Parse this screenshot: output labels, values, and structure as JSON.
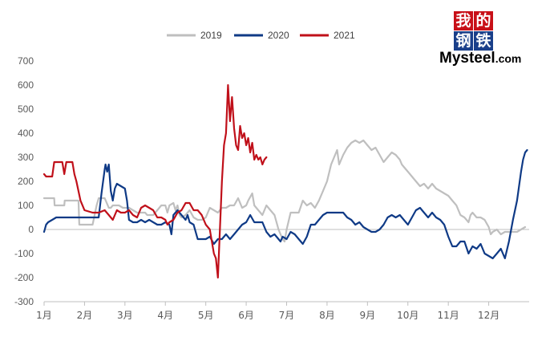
{
  "logo": {
    "chars": [
      "我",
      "的",
      "钢",
      "铁"
    ],
    "brand_main": "Mysteel",
    "brand_suffix": ".com",
    "red": "#c81018",
    "blue": "#1a3f8a"
  },
  "chart_data": {
    "type": "line",
    "title": "",
    "xlabel": "",
    "ylabel": "",
    "ylim": [
      -300,
      700
    ],
    "yticks": [
      -300,
      -200,
      -100,
      0,
      100,
      200,
      300,
      400,
      500,
      600,
      700
    ],
    "xlim": [
      1,
      13
    ],
    "xticks": [
      {
        "x": 1,
        "label": "1月"
      },
      {
        "x": 2,
        "label": "2月"
      },
      {
        "x": 3,
        "label": "3月"
      },
      {
        "x": 4,
        "label": "4月"
      },
      {
        "x": 5,
        "label": "5月"
      },
      {
        "x": 6,
        "label": "6月"
      },
      {
        "x": 7,
        "label": "7月"
      },
      {
        "x": 8,
        "label": "8月"
      },
      {
        "x": 9,
        "label": "9月"
      },
      {
        "x": 10,
        "label": "10月"
      },
      {
        "x": 11,
        "label": "11月"
      },
      {
        "x": 12,
        "label": "12月"
      }
    ],
    "legend": "top-center",
    "grid": false,
    "series": [
      {
        "name": "2019",
        "color": "#bfbfbf",
        "x": [
          1.0,
          1.25,
          1.26,
          1.5,
          1.51,
          1.85,
          1.87,
          2.2,
          2.3,
          2.35,
          2.5,
          2.6,
          2.65,
          2.7,
          2.85,
          2.95,
          3.1,
          3.2,
          3.3,
          3.5,
          3.55,
          3.7,
          3.8,
          3.9,
          4.0,
          4.05,
          4.1,
          4.2,
          4.25,
          4.3,
          4.35,
          4.4,
          4.5,
          4.6,
          4.7,
          4.8,
          4.9,
          5.0,
          5.1,
          5.2,
          5.3,
          5.4,
          5.5,
          5.6,
          5.7,
          5.8,
          5.9,
          6.0,
          6.05,
          6.15,
          6.2,
          6.3,
          6.4,
          6.5,
          6.6,
          6.7,
          6.8,
          6.85,
          6.9,
          6.95,
          7.0,
          7.1,
          7.2,
          7.3,
          7.4,
          7.5,
          7.6,
          7.7,
          7.8,
          7.9,
          8.0,
          8.1,
          8.2,
          8.25,
          8.3,
          8.4,
          8.5,
          8.6,
          8.7,
          8.8,
          8.9,
          9.0,
          9.1,
          9.2,
          9.3,
          9.4,
          9.5,
          9.6,
          9.7,
          9.8,
          9.85,
          9.9,
          10.0,
          10.1,
          10.2,
          10.3,
          10.4,
          10.5,
          10.6,
          10.7,
          10.8,
          10.9,
          11.0,
          11.1,
          11.2,
          11.3,
          11.4,
          11.45,
          11.5,
          11.55,
          11.6,
          11.7,
          11.8,
          11.9,
          12.0,
          12.05,
          12.1,
          12.2,
          12.3,
          12.4,
          12.5,
          12.6,
          12.7,
          12.8,
          12.9
        ],
        "values": [
          130,
          130,
          100,
          100,
          120,
          120,
          20,
          20,
          100,
          130,
          130,
          90,
          90,
          100,
          100,
          90,
          90,
          80,
          70,
          70,
          60,
          60,
          80,
          100,
          100,
          70,
          100,
          110,
          80,
          100,
          60,
          50,
          60,
          80,
          50,
          40,
          40,
          50,
          90,
          80,
          70,
          90,
          90,
          100,
          100,
          130,
          90,
          100,
          120,
          150,
          100,
          80,
          60,
          100,
          80,
          60,
          0,
          -20,
          -40,
          -50,
          0,
          70,
          70,
          70,
          120,
          100,
          110,
          90,
          120,
          160,
          200,
          270,
          310,
          330,
          270,
          310,
          340,
          360,
          370,
          360,
          370,
          350,
          330,
          340,
          310,
          280,
          300,
          320,
          310,
          290,
          270,
          260,
          240,
          220,
          200,
          180,
          190,
          170,
          190,
          170,
          160,
          150,
          140,
          120,
          100,
          60,
          50,
          40,
          30,
          60,
          70,
          50,
          50,
          40,
          10,
          -20,
          -10,
          0,
          -20,
          -10,
          -10,
          -10,
          -10,
          0,
          10
        ]
      },
      {
        "name": "2020",
        "color": "#0f3a86",
        "x": [
          1.0,
          1.05,
          1.1,
          1.2,
          1.3,
          1.4,
          1.6,
          1.8,
          2.0,
          2.2,
          2.35,
          2.42,
          2.5,
          2.52,
          2.56,
          2.6,
          2.65,
          2.7,
          2.75,
          2.8,
          2.9,
          3.0,
          3.05,
          3.1,
          3.2,
          3.3,
          3.4,
          3.5,
          3.6,
          3.7,
          3.8,
          3.9,
          4.0,
          4.1,
          4.15,
          4.2,
          4.3,
          4.4,
          4.5,
          4.55,
          4.6,
          4.7,
          4.8,
          4.9,
          5.0,
          5.1,
          5.2,
          5.3,
          5.4,
          5.5,
          5.6,
          5.7,
          5.8,
          5.9,
          6.0,
          6.1,
          6.2,
          6.3,
          6.4,
          6.5,
          6.6,
          6.7,
          6.8,
          6.85,
          6.9,
          7.0,
          7.1,
          7.2,
          7.3,
          7.4,
          7.5,
          7.6,
          7.7,
          7.8,
          7.9,
          8.0,
          8.1,
          8.2,
          8.3,
          8.4,
          8.5,
          8.6,
          8.7,
          8.8,
          8.9,
          9.0,
          9.1,
          9.2,
          9.3,
          9.4,
          9.5,
          9.6,
          9.7,
          9.8,
          9.9,
          10.0,
          10.1,
          10.2,
          10.3,
          10.4,
          10.5,
          10.6,
          10.7,
          10.8,
          10.9,
          11.0,
          11.1,
          11.2,
          11.3,
          11.4,
          11.5,
          11.6,
          11.7,
          11.8,
          11.9,
          12.0,
          12.1,
          12.2,
          12.3,
          12.4,
          12.5,
          12.6,
          12.7,
          12.75,
          12.8,
          12.85,
          12.9,
          12.95
        ],
        "values": [
          -10,
          20,
          30,
          40,
          50,
          50,
          50,
          50,
          50,
          50,
          50,
          150,
          250,
          270,
          240,
          270,
          160,
          120,
          170,
          190,
          180,
          170,
          120,
          40,
          30,
          30,
          40,
          30,
          40,
          30,
          20,
          20,
          30,
          20,
          -20,
          60,
          80,
          60,
          40,
          60,
          30,
          20,
          -40,
          -40,
          -40,
          -30,
          -60,
          -40,
          -40,
          -20,
          -40,
          -20,
          0,
          20,
          30,
          60,
          30,
          30,
          30,
          -10,
          -30,
          -20,
          -40,
          -50,
          -30,
          -40,
          -10,
          -20,
          -40,
          -60,
          -30,
          20,
          20,
          40,
          60,
          70,
          70,
          70,
          70,
          70,
          50,
          40,
          20,
          30,
          10,
          0,
          -10,
          -10,
          0,
          20,
          50,
          60,
          50,
          60,
          40,
          20,
          50,
          80,
          90,
          70,
          50,
          70,
          50,
          40,
          20,
          -30,
          -70,
          -70,
          -50,
          -50,
          -100,
          -70,
          -80,
          -60,
          -100,
          -110,
          -120,
          -100,
          -80,
          -120,
          -50,
          40,
          120,
          180,
          240,
          290,
          320,
          330
        ]
      },
      {
        "name": "2021",
        "color": "#c0101a",
        "x": [
          1.0,
          1.05,
          1.2,
          1.25,
          1.3,
          1.45,
          1.5,
          1.55,
          1.7,
          1.75,
          1.8,
          1.9,
          2.0,
          2.2,
          2.35,
          2.5,
          2.6,
          2.7,
          2.8,
          2.9,
          3.0,
          3.1,
          3.2,
          3.3,
          3.4,
          3.5,
          3.6,
          3.7,
          3.8,
          3.9,
          4.0,
          4.05,
          4.1,
          4.2,
          4.3,
          4.4,
          4.5,
          4.6,
          4.7,
          4.8,
          4.9,
          5.0,
          5.1,
          5.2,
          5.25,
          5.3,
          5.35,
          5.4,
          5.45,
          5.5,
          5.55,
          5.6,
          5.65,
          5.7,
          5.75,
          5.8,
          5.85,
          5.9,
          5.95,
          6.0,
          6.05,
          6.1,
          6.15,
          6.2,
          6.25,
          6.3,
          6.35,
          6.4,
          6.45,
          6.5
        ],
        "values": [
          230,
          220,
          220,
          280,
          280,
          280,
          230,
          280,
          280,
          230,
          200,
          120,
          80,
          70,
          70,
          80,
          60,
          40,
          80,
          70,
          70,
          80,
          60,
          50,
          90,
          100,
          90,
          80,
          50,
          50,
          40,
          20,
          30,
          40,
          70,
          80,
          110,
          110,
          80,
          80,
          60,
          20,
          0,
          -100,
          -120,
          -200,
          0,
          200,
          350,
          400,
          600,
          450,
          550,
          420,
          350,
          330,
          430,
          380,
          400,
          350,
          380,
          320,
          360,
          290,
          310,
          290,
          300,
          270,
          290,
          300
        ]
      }
    ]
  }
}
